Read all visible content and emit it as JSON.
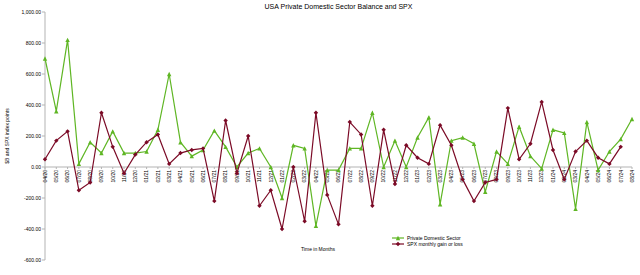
{
  "chart_data": {
    "type": "line",
    "title": "USA Private Domestic Sector Balance and SPX",
    "x_label": "Time in Months",
    "y_label": "$B and SPX index points",
    "categories": [
      "04/20",
      "05/20",
      "06/20",
      "07/20",
      "08/20",
      "09/20",
      "10/20",
      "11/20",
      "12/20",
      "01/21",
      "02/21",
      "03/21",
      "04/21",
      "05/21",
      "06/21",
      "07/21",
      "08/21",
      "09/21",
      "10/21",
      "11/21",
      "12/21",
      "01/22",
      "02/22",
      "03/22",
      "04/22",
      "05/22",
      "06/22",
      "07/22",
      "08/22",
      "09/22",
      "10/22",
      "11/22",
      "12/22",
      "01/23",
      "02/23",
      "03/23",
      "04/23",
      "05/23",
      "06/23",
      "07/23",
      "08/23",
      "09/23",
      "10/23",
      "11/23",
      "12/23",
      "01/24",
      "02/24",
      "03/24",
      "04/24",
      "05/24",
      "06/24",
      "07/24",
      "08/24"
    ],
    "series": [
      {
        "name": "Private Domestic Sector",
        "color": "#5fb624",
        "marker": "triangle",
        "values": [
          700,
          360,
          820,
          20,
          160,
          90,
          230,
          90,
          90,
          100,
          240,
          600,
          160,
          70,
          110,
          235,
          130,
          0,
          90,
          120,
          0,
          -200,
          140,
          120,
          -380,
          -20,
          -20,
          120,
          120,
          350,
          0,
          170,
          0,
          190,
          320,
          -240,
          170,
          190,
          150,
          -160,
          100,
          20,
          260,
          70,
          -10,
          240,
          220,
          -270,
          290,
          -20,
          100,
          180,
          310
        ]
      },
      {
        "name": "SPX monthly gain or loss",
        "color": "#7b0a26",
        "marker": "diamond",
        "values": [
          50,
          170,
          230,
          -150,
          -100,
          350,
          130,
          -40,
          80,
          160,
          210,
          20,
          90,
          110,
          120,
          -220,
          300,
          -40,
          200,
          -250,
          -150,
          -400,
          0,
          -350,
          350,
          -180,
          -370,
          290,
          210,
          -250,
          240,
          -110,
          140,
          60,
          20,
          270,
          140,
          -80,
          -220,
          -100,
          -80,
          380,
          50,
          150,
          420,
          110,
          -80,
          100,
          170,
          60,
          20,
          130,
          null
        ]
      }
    ],
    "ylim": [
      -600,
      1000
    ],
    "yticks": [
      {
        "value": -600,
        "label": "-600.00"
      },
      {
        "value": -400,
        "label": "-400.00"
      },
      {
        "value": -200,
        "label": "-200.00"
      },
      {
        "value": 0,
        "label": "0.00"
      },
      {
        "value": 200,
        "label": "200.00"
      },
      {
        "value": 400,
        "label": "400.00"
      },
      {
        "value": 600,
        "label": "600.00"
      },
      {
        "value": 800,
        "label": "800.00"
      },
      {
        "value": 1000,
        "label": "1,000.00"
      }
    ],
    "grid": false,
    "legend": "bottom"
  }
}
